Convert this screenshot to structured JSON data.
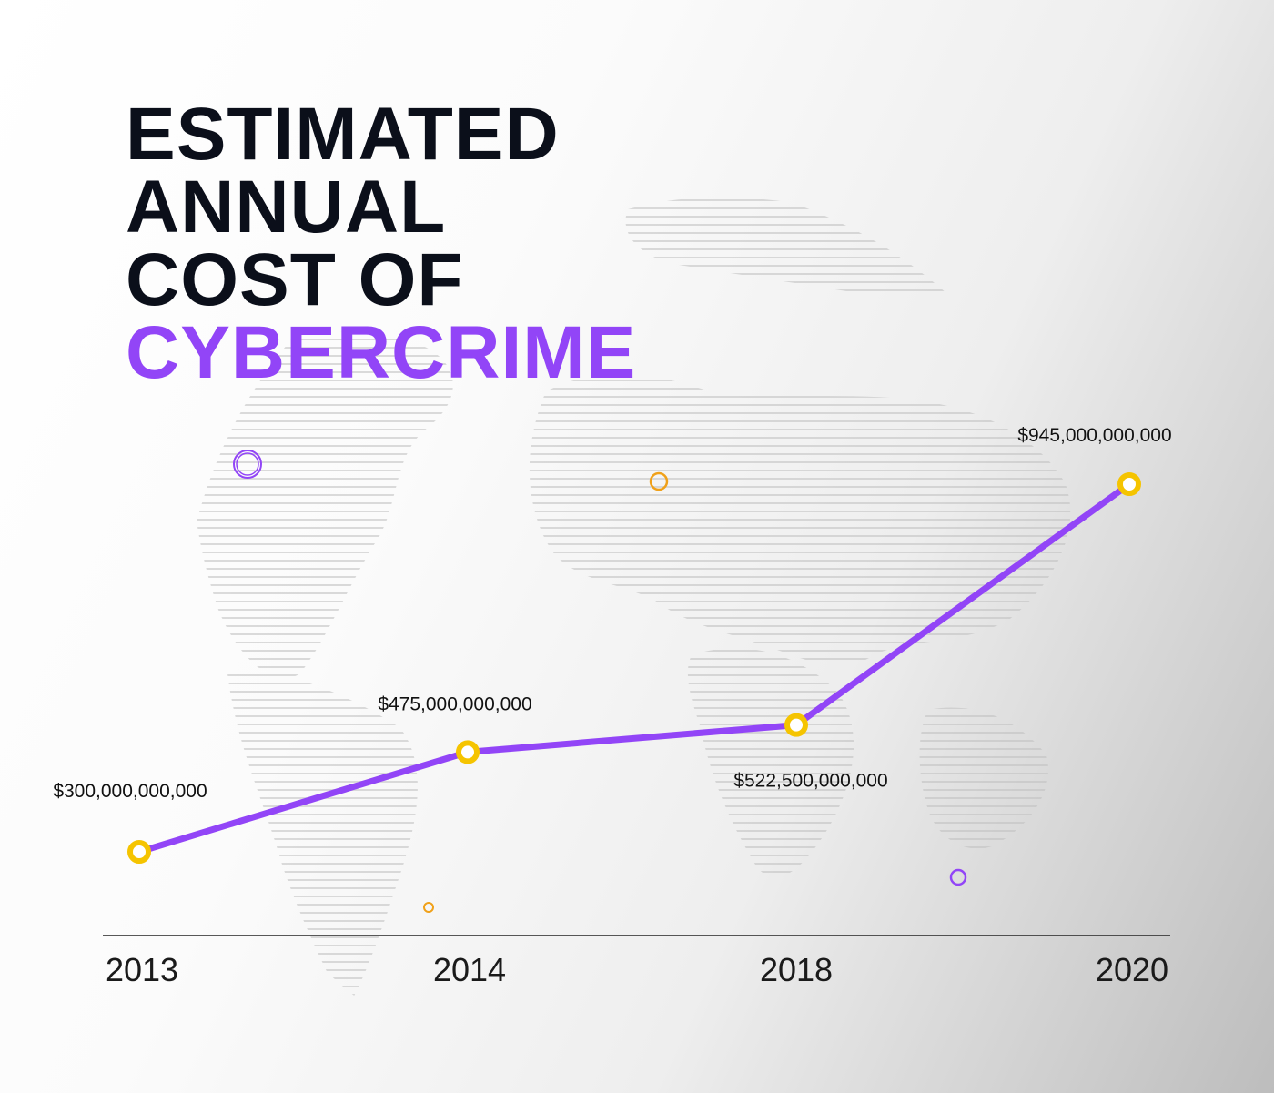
{
  "title": {
    "line1": "ESTIMATED",
    "line2": "ANNUAL",
    "line3": "COST OF",
    "line4": "CYBERCRIME"
  },
  "colors": {
    "title_dark": "#0b0f1a",
    "accent": "#9245f7",
    "marker": "#f5c400",
    "decor_orange": "#f0a11a",
    "axis": "#222222"
  },
  "decor_icons": [
    "globe-background-icon",
    "ring-icon"
  ],
  "chart_data": {
    "type": "line",
    "categories": [
      "2013",
      "2014",
      "2018",
      "2020"
    ],
    "series": [
      {
        "values": [
          300000000000,
          475000000000,
          522500000000,
          945000000000
        ]
      }
    ],
    "data_labels": [
      "$300,000,000,000",
      "$475,000,000,000",
      "$522,500,000,000",
      "$945,000,000,000"
    ],
    "grid": false,
    "legend": "none"
  }
}
